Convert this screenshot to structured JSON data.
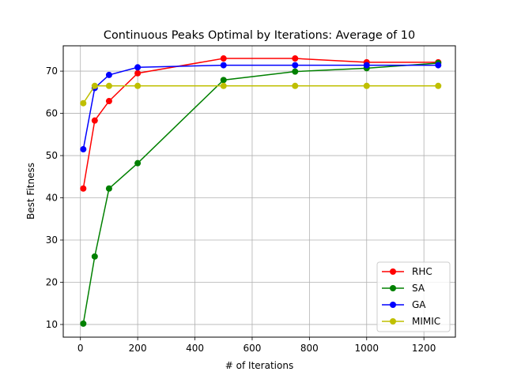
{
  "chart_data": {
    "type": "line",
    "title": "Continuous Peaks Optimal by Iterations: Average of 10",
    "xlabel": "# of Iterations",
    "ylabel": "Best Fitness",
    "xlim": [
      -60,
      1310
    ],
    "ylim": [
      7,
      76
    ],
    "xticks": [
      0,
      200,
      400,
      600,
      800,
      1000,
      1200
    ],
    "yticks": [
      10,
      20,
      30,
      40,
      50,
      60,
      70
    ],
    "grid": true,
    "legend_position": "lower-right",
    "x": [
      10,
      50,
      100,
      200,
      500,
      750,
      1000,
      1250
    ],
    "series": [
      {
        "name": "RHC",
        "color": "#ff0000",
        "values": [
          42.2,
          58.3,
          62.9,
          69.5,
          73.0,
          73.0,
          72.1,
          72.1
        ]
      },
      {
        "name": "SA",
        "color": "#008000",
        "values": [
          10.2,
          26.1,
          42.2,
          48.2,
          67.9,
          69.9,
          70.7,
          71.9
        ]
      },
      {
        "name": "GA",
        "color": "#0000ff",
        "values": [
          51.5,
          66.0,
          69.1,
          70.9,
          71.4,
          71.4,
          71.4,
          71.4
        ]
      },
      {
        "name": "MIMIC",
        "color": "#bfbf00",
        "values": [
          62.4,
          66.5,
          66.5,
          66.5,
          66.5,
          66.5,
          66.5,
          66.5
        ]
      }
    ]
  }
}
